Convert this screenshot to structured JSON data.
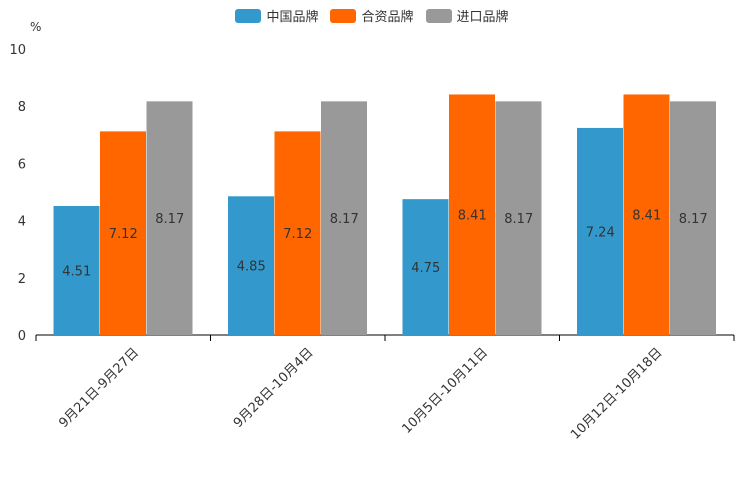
{
  "chart_data": {
    "type": "bar",
    "unit": "%",
    "categories": [
      "9月21日-9月27日",
      "9月28日-10月4日",
      "10月5日-10月11日",
      "10月12日-10月18日"
    ],
    "series": [
      {
        "name": "中国品牌",
        "color": "#3399cc",
        "values": [
          4.51,
          4.85,
          4.75,
          7.24
        ]
      },
      {
        "name": "合资品牌",
        "color": "#ff6600",
        "values": [
          7.12,
          7.12,
          8.41,
          8.41
        ]
      },
      {
        "name": "进口品牌",
        "color": "#999999",
        "values": [
          8.17,
          8.17,
          8.17,
          8.17
        ]
      }
    ],
    "ylim": [
      0,
      10
    ],
    "yticks": [
      0,
      2,
      4,
      6,
      8,
      10
    ],
    "legend_position": "top-center"
  }
}
